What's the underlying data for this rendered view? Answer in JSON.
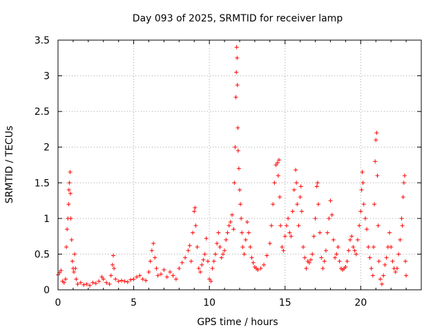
{
  "chart_data": {
    "type": "scatter",
    "title": "Day 093 of 2025, SRMTID for receiver lamp",
    "xlabel": "GPS time / hours",
    "ylabel": "SRMTID / TECUs",
    "xlim": [
      0,
      24
    ],
    "ylim": [
      0,
      3.5
    ],
    "xticks": [
      0,
      5,
      10,
      15,
      20
    ],
    "xtick_labels": [
      "0",
      "5",
      "10",
      "15",
      "20"
    ],
    "yticks": [
      0,
      0.5,
      1,
      1.5,
      2,
      2.5,
      3,
      3.5
    ],
    "ytick_labels": [
      "0",
      "0.5",
      "1",
      "1.5",
      "2",
      "2.5",
      "3",
      "3.5"
    ],
    "grid": true,
    "marker": "+",
    "color": "#ff0000",
    "series": [
      {
        "name": "SRMTID",
        "points": [
          [
            0.0,
            0.21
          ],
          [
            0.1,
            0.24
          ],
          [
            0.2,
            0.27
          ],
          [
            0.3,
            0.12
          ],
          [
            0.4,
            0.1
          ],
          [
            0.5,
            0.15
          ],
          [
            0.55,
            0.6
          ],
          [
            0.6,
            0.85
          ],
          [
            0.65,
            1.0
          ],
          [
            0.7,
            1.2
          ],
          [
            0.72,
            1.4
          ],
          [
            0.75,
            1.5
          ],
          [
            0.8,
            1.65
          ],
          [
            0.82,
            1.35
          ],
          [
            0.85,
            1.0
          ],
          [
            0.9,
            0.7
          ],
          [
            0.95,
            0.4
          ],
          [
            1.0,
            0.3
          ],
          [
            1.05,
            0.25
          ],
          [
            1.1,
            0.5
          ],
          [
            1.15,
            0.3
          ],
          [
            1.2,
            0.15
          ],
          [
            1.3,
            0.08
          ],
          [
            1.5,
            0.1
          ],
          [
            1.7,
            0.07
          ],
          [
            1.9,
            0.08
          ],
          [
            2.1,
            0.06
          ],
          [
            2.3,
            0.1
          ],
          [
            2.5,
            0.09
          ],
          [
            2.7,
            0.12
          ],
          [
            2.9,
            0.18
          ],
          [
            3.0,
            0.15
          ],
          [
            3.2,
            0.1
          ],
          [
            3.4,
            0.08
          ],
          [
            3.5,
            0.2
          ],
          [
            3.6,
            0.35
          ],
          [
            3.65,
            0.48
          ],
          [
            3.7,
            0.3
          ],
          [
            3.8,
            0.15
          ],
          [
            4.0,
            0.12
          ],
          [
            4.2,
            0.13
          ],
          [
            4.4,
            0.12
          ],
          [
            4.6,
            0.11
          ],
          [
            4.8,
            0.14
          ],
          [
            5.0,
            0.15
          ],
          [
            5.2,
            0.18
          ],
          [
            5.4,
            0.2
          ],
          [
            5.6,
            0.15
          ],
          [
            5.8,
            0.13
          ],
          [
            6.0,
            0.25
          ],
          [
            6.1,
            0.4
          ],
          [
            6.2,
            0.55
          ],
          [
            6.3,
            0.65
          ],
          [
            6.4,
            0.45
          ],
          [
            6.5,
            0.3
          ],
          [
            6.6,
            0.2
          ],
          [
            6.8,
            0.22
          ],
          [
            7.0,
            0.28
          ],
          [
            7.2,
            0.18
          ],
          [
            7.4,
            0.25
          ],
          [
            7.6,
            0.2
          ],
          [
            7.8,
            0.15
          ],
          [
            8.0,
            0.3
          ],
          [
            8.2,
            0.38
          ],
          [
            8.4,
            0.45
          ],
          [
            8.6,
            0.55
          ],
          [
            8.7,
            0.62
          ],
          [
            8.8,
            0.4
          ],
          [
            8.9,
            0.8
          ],
          [
            9.0,
            1.1
          ],
          [
            9.05,
            1.15
          ],
          [
            9.1,
            0.9
          ],
          [
            9.2,
            0.6
          ],
          [
            9.3,
            0.3
          ],
          [
            9.4,
            0.25
          ],
          [
            9.5,
            0.35
          ],
          [
            9.6,
            0.42
          ],
          [
            9.7,
            0.5
          ],
          [
            9.8,
            0.72
          ],
          [
            9.9,
            0.4
          ],
          [
            10.0,
            0.15
          ],
          [
            10.1,
            0.12
          ],
          [
            10.2,
            0.3
          ],
          [
            10.3,
            0.4
          ],
          [
            10.4,
            0.5
          ],
          [
            10.5,
            0.65
          ],
          [
            10.6,
            0.8
          ],
          [
            10.7,
            0.6
          ],
          [
            10.8,
            0.45
          ],
          [
            10.9,
            0.5
          ],
          [
            11.0,
            0.55
          ],
          [
            11.1,
            0.7
          ],
          [
            11.2,
            0.8
          ],
          [
            11.3,
            0.9
          ],
          [
            11.4,
            0.95
          ],
          [
            11.5,
            1.05
          ],
          [
            11.6,
            0.85
          ],
          [
            11.65,
            1.5
          ],
          [
            11.7,
            2.0
          ],
          [
            11.75,
            2.7
          ],
          [
            11.78,
            3.05
          ],
          [
            11.8,
            3.4
          ],
          [
            11.83,
            3.25
          ],
          [
            11.85,
            2.87
          ],
          [
            11.88,
            2.27
          ],
          [
            11.9,
            1.95
          ],
          [
            11.95,
            1.7
          ],
          [
            12.0,
            1.4
          ],
          [
            12.05,
            1.2
          ],
          [
            12.1,
            1.0
          ],
          [
            12.15,
            0.8
          ],
          [
            12.2,
            0.6
          ],
          [
            12.3,
            0.5
          ],
          [
            12.4,
            0.7
          ],
          [
            12.5,
            0.95
          ],
          [
            12.6,
            0.8
          ],
          [
            12.7,
            0.6
          ],
          [
            12.8,
            0.45
          ],
          [
            12.9,
            0.38
          ],
          [
            13.0,
            0.32
          ],
          [
            13.1,
            0.3
          ],
          [
            13.2,
            0.28
          ],
          [
            13.4,
            0.3
          ],
          [
            13.6,
            0.35
          ],
          [
            13.8,
            0.48
          ],
          [
            14.0,
            0.65
          ],
          [
            14.1,
            0.9
          ],
          [
            14.2,
            1.2
          ],
          [
            14.3,
            1.5
          ],
          [
            14.4,
            1.75
          ],
          [
            14.5,
            1.78
          ],
          [
            14.55,
            1.6
          ],
          [
            14.6,
            1.82
          ],
          [
            14.65,
            1.3
          ],
          [
            14.7,
            0.9
          ],
          [
            14.8,
            0.6
          ],
          [
            14.9,
            0.55
          ],
          [
            15.0,
            0.75
          ],
          [
            15.1,
            0.9
          ],
          [
            15.2,
            1.0
          ],
          [
            15.3,
            0.8
          ],
          [
            15.4,
            0.75
          ],
          [
            15.5,
            1.1
          ],
          [
            15.6,
            1.4
          ],
          [
            15.7,
            1.68
          ],
          [
            15.75,
            1.5
          ],
          [
            15.8,
            1.2
          ],
          [
            15.9,
            0.9
          ],
          [
            16.0,
            1.3
          ],
          [
            16.05,
            1.45
          ],
          [
            16.1,
            1.1
          ],
          [
            16.2,
            0.6
          ],
          [
            16.3,
            0.45
          ],
          [
            16.4,
            0.3
          ],
          [
            16.5,
            0.4
          ],
          [
            16.6,
            0.38
          ],
          [
            16.7,
            0.42
          ],
          [
            16.8,
            0.5
          ],
          [
            16.9,
            0.75
          ],
          [
            17.0,
            1.0
          ],
          [
            17.1,
            1.45
          ],
          [
            17.15,
            1.5
          ],
          [
            17.2,
            1.2
          ],
          [
            17.3,
            0.8
          ],
          [
            17.4,
            0.45
          ],
          [
            17.5,
            0.3
          ],
          [
            17.6,
            0.4
          ],
          [
            17.7,
            0.55
          ],
          [
            17.8,
            0.8
          ],
          [
            17.9,
            1.0
          ],
          [
            18.0,
            1.25
          ],
          [
            18.1,
            1.05
          ],
          [
            18.2,
            0.7
          ],
          [
            18.3,
            0.45
          ],
          [
            18.4,
            0.5
          ],
          [
            18.5,
            0.6
          ],
          [
            18.6,
            0.4
          ],
          [
            18.7,
            0.3
          ],
          [
            18.8,
            0.28
          ],
          [
            18.9,
            0.3
          ],
          [
            19.0,
            0.32
          ],
          [
            19.1,
            0.4
          ],
          [
            19.2,
            0.55
          ],
          [
            19.3,
            0.7
          ],
          [
            19.4,
            0.75
          ],
          [
            19.5,
            0.6
          ],
          [
            19.6,
            0.55
          ],
          [
            19.7,
            0.5
          ],
          [
            19.8,
            0.7
          ],
          [
            19.9,
            0.9
          ],
          [
            20.0,
            1.1
          ],
          [
            20.05,
            1.4
          ],
          [
            20.1,
            1.65
          ],
          [
            20.15,
            1.5
          ],
          [
            20.2,
            1.2
          ],
          [
            20.3,
            1.0
          ],
          [
            20.4,
            0.85
          ],
          [
            20.5,
            0.6
          ],
          [
            20.6,
            0.45
          ],
          [
            20.7,
            0.3
          ],
          [
            20.8,
            0.2
          ],
          [
            20.85,
            0.6
          ],
          [
            20.9,
            1.2
          ],
          [
            20.95,
            1.8
          ],
          [
            21.0,
            2.1
          ],
          [
            21.05,
            2.2
          ],
          [
            21.1,
            1.6
          ],
          [
            21.15,
            0.9
          ],
          [
            21.2,
            0.4
          ],
          [
            21.3,
            0.15
          ],
          [
            21.4,
            0.08
          ],
          [
            21.5,
            0.2
          ],
          [
            21.6,
            0.35
          ],
          [
            21.7,
            0.45
          ],
          [
            21.8,
            0.6
          ],
          [
            21.9,
            0.8
          ],
          [
            22.0,
            0.6
          ],
          [
            22.1,
            0.4
          ],
          [
            22.2,
            0.3
          ],
          [
            22.3,
            0.25
          ],
          [
            22.4,
            0.3
          ],
          [
            22.5,
            0.5
          ],
          [
            22.6,
            0.7
          ],
          [
            22.7,
            1.0
          ],
          [
            22.75,
            0.9
          ],
          [
            22.8,
            1.3
          ],
          [
            22.85,
            1.5
          ],
          [
            22.9,
            1.6
          ],
          [
            22.95,
            0.4
          ],
          [
            23.0,
            0.2
          ]
        ]
      }
    ]
  }
}
